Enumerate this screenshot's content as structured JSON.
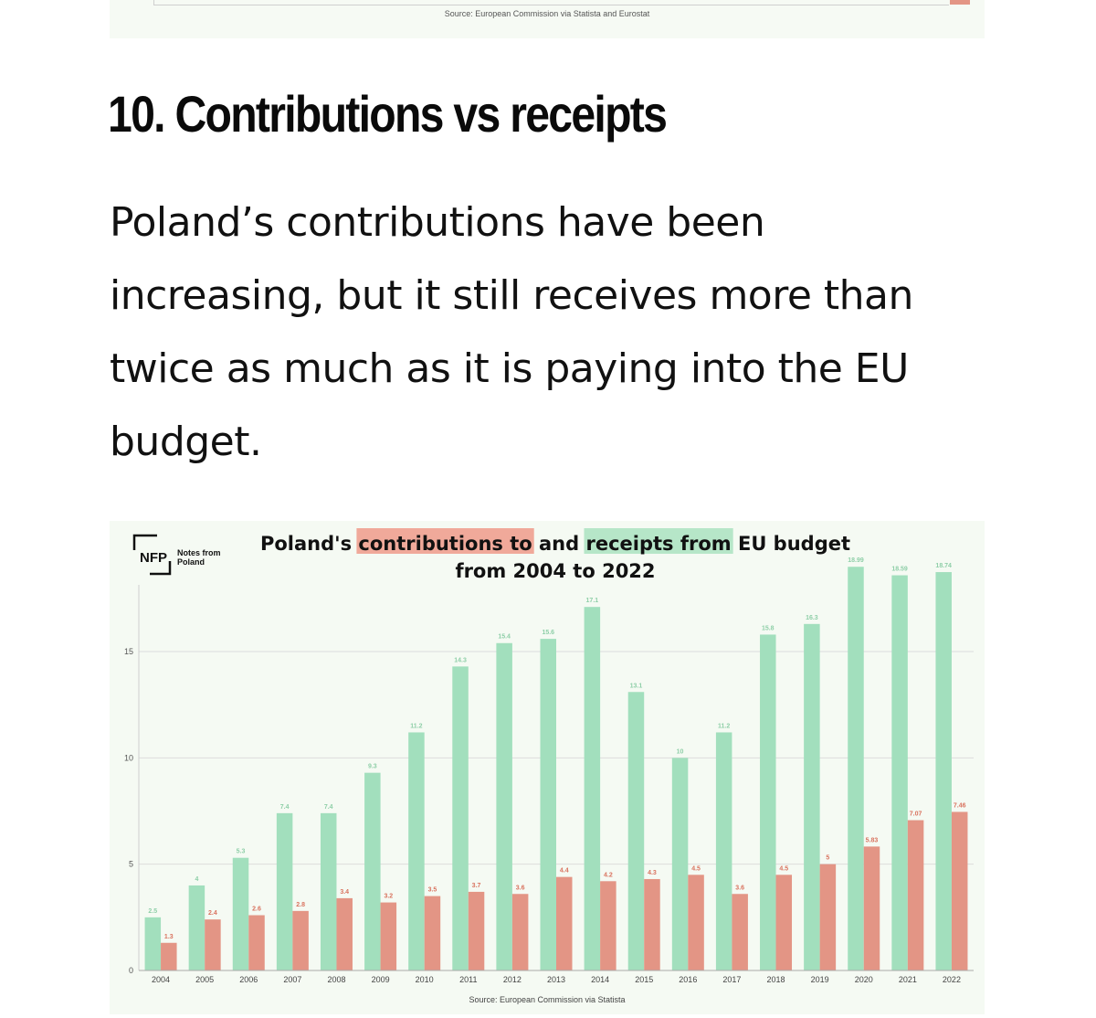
{
  "previous_chart": {
    "source": "Source: European Commission via Statista and Eurostat"
  },
  "section": {
    "heading": "10. Contributions vs receipts",
    "body": "Poland’s contributions have been increasing, but it still receives more than twice as much as it is paying into the EU budget."
  },
  "colors": {
    "receipts": "#a2dfbd",
    "contributions": "#e39585",
    "receipts_label": "#8fcfa8",
    "contributions_label": "#d9735f",
    "highlight_contrib": "#f0a99a",
    "highlight_receipts": "#b6e6c8",
    "card_bg": "#f5faf3"
  },
  "logo": {
    "mark": "NFP",
    "line1": "Notes from",
    "line2": "Poland"
  },
  "chart_data": {
    "type": "bar",
    "title": {
      "part1": "Poland's ",
      "highlight1": "contributions to",
      "part2": " and ",
      "highlight2": "receipts from",
      "part3": " EU budget",
      "line2": "from 2004 to 2022"
    },
    "categories": [
      "2004",
      "2005",
      "2006",
      "2007",
      "2008",
      "2009",
      "2010",
      "2011",
      "2012",
      "2013",
      "2014",
      "2015",
      "2016",
      "2017",
      "2018",
      "2019",
      "2020",
      "2021",
      "2022"
    ],
    "series": [
      {
        "key": "receipts",
        "values": [
          2.5,
          4,
          5.3,
          7.4,
          7.4,
          9.3,
          11.2,
          14.3,
          15.4,
          15.6,
          17.1,
          13.1,
          10,
          11.2,
          15.8,
          16.3,
          18.99,
          18.59,
          18.74
        ]
      },
      {
        "key": "contributions",
        "values": [
          1.3,
          2.4,
          2.6,
          2.8,
          3.4,
          3.2,
          3.5,
          3.7,
          3.6,
          4.4,
          4.2,
          4.3,
          4.5,
          3.6,
          4.5,
          5,
          5.83,
          7.07,
          7.46
        ]
      }
    ],
    "y_ticks": [
      0,
      5,
      10,
      15
    ],
    "ylim": [
      0,
      19
    ],
    "xlabel": "",
    "ylabel": "",
    "grid": true,
    "legend": "none",
    "source": "Source: European Commission via Statista"
  }
}
